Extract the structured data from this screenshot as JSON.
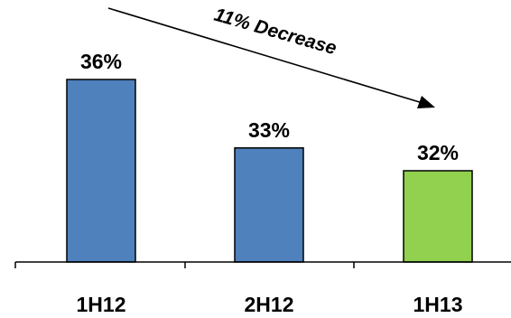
{
  "chart_data": {
    "type": "bar",
    "categories": [
      "1H12",
      "2H12",
      "1H13"
    ],
    "values": [
      36,
      33,
      32
    ],
    "data_labels": [
      "36%",
      "33%",
      "32%"
    ],
    "unit": "%",
    "title": "",
    "xlabel": "",
    "ylabel": "",
    "ylim": [
      28,
      36
    ],
    "grid": false,
    "legend": "none",
    "bar_colors": [
      "#4f81bd",
      "#4f81bd",
      "#92d050"
    ],
    "bar_stroke": "#000000",
    "annotation": {
      "text": "11% Decrease",
      "arrow_direction": "down-right"
    }
  }
}
